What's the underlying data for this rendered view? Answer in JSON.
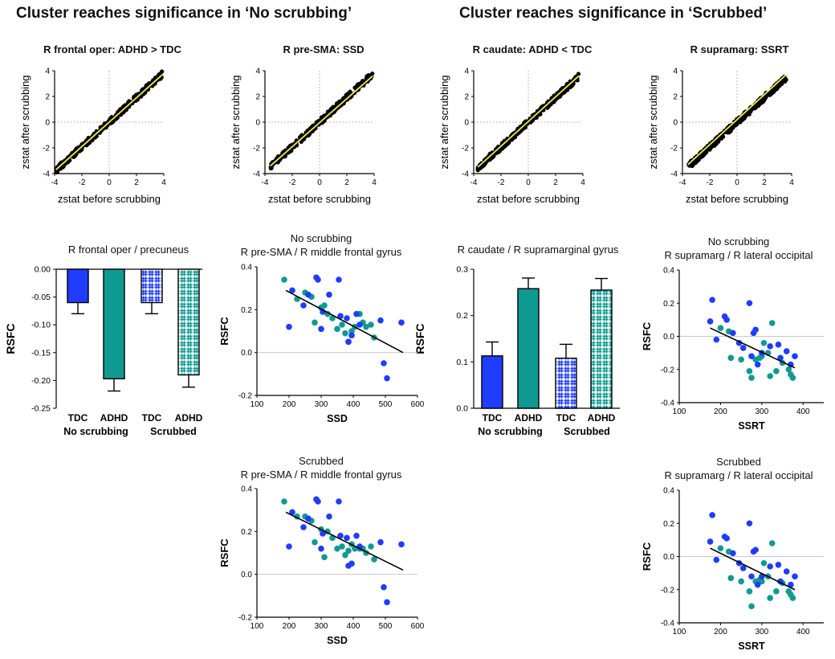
{
  "headers": {
    "left": "Cluster reaches significance in ‘No scrubbing’",
    "right": "Cluster reaches significance in ‘Scrubbed’"
  },
  "colors": {
    "tdc": "#1f3cff",
    "adhd": "#0f9a91",
    "fit": "#f5e84a",
    "point": "#000000"
  },
  "chart_data": [
    {
      "id": "s1",
      "type": "scatter",
      "title": "R frontal oper: ADHD > TDC",
      "xlabel": "zstat before scrubbing",
      "ylabel": "zstat after scrubbing",
      "xlim": [
        -4,
        4
      ],
      "ylim": [
        -4,
        4
      ],
      "xticks": [
        "-4",
        "-2",
        "0",
        "2",
        "4"
      ],
      "yticks": [
        "4",
        "2",
        "0",
        "-2",
        "-4"
      ],
      "fit": {
        "x": [
          -3.9,
          3.9
        ],
        "y": [
          -3.7,
          3.7
        ]
      },
      "data_extent": [
        -3.9,
        3.9
      ],
      "spread": 0.25
    },
    {
      "id": "s2",
      "type": "scatter",
      "title": "R pre-SMA: SSD",
      "xlabel": "zstat before scrubbing",
      "ylabel": "zstat after scrubbing",
      "xlim": [
        -4,
        4
      ],
      "ylim": [
        -4,
        4
      ],
      "xticks": [
        "-4",
        "-2",
        "0",
        "2",
        "4"
      ],
      "yticks": [
        "4",
        "2",
        "0",
        "-2",
        "-4"
      ],
      "fit": {
        "x": [
          -3.6,
          3.9
        ],
        "y": [
          -3.4,
          3.6
        ]
      },
      "data_extent": [
        -3.6,
        3.9
      ],
      "spread": 0.25
    },
    {
      "id": "s3",
      "type": "scatter",
      "title": "R caudate: ADHD < TDC",
      "xlabel": "zstat before scrubbing",
      "ylabel": "zstat after scrubbing",
      "xlim": [
        -4,
        4
      ],
      "ylim": [
        -4,
        4
      ],
      "xticks": [
        "-4",
        "-2",
        "0",
        "2",
        "4"
      ],
      "yticks": [
        "4",
        "2",
        "0",
        "-2",
        "-4"
      ],
      "fit": {
        "x": [
          -3.7,
          3.7
        ],
        "y": [
          -3.5,
          3.6
        ]
      },
      "data_extent": [
        -3.7,
        3.7
      ],
      "spread": 0.25
    },
    {
      "id": "s4",
      "type": "scatter",
      "title": "R supramarg: SSRT",
      "xlabel": "zstat before scrubbing",
      "ylabel": "zstat after scrubbing",
      "xlim": [
        -4,
        4
      ],
      "ylim": [
        -4,
        4
      ],
      "xticks": [
        "-4",
        "-2",
        "0",
        "2",
        "4"
      ],
      "yticks": [
        "4",
        "2",
        "0",
        "-2",
        "-4"
      ],
      "fit": {
        "x": [
          -3.6,
          3.6
        ],
        "y": [
          -3.3,
          3.7
        ]
      },
      "data_extent": [
        -3.6,
        3.6
      ],
      "spread": 0.25
    },
    {
      "id": "b1",
      "type": "bar",
      "title": "R frontal oper / precuneus",
      "ylabel": "RSFC",
      "ylim": [
        -0.25,
        0.0
      ],
      "yticks": [
        "0.00",
        "-0.05",
        "-0.10",
        "-0.15",
        "-0.20",
        "-0.25"
      ],
      "categories": [
        "TDC",
        "ADHD",
        "TDC",
        "ADHD"
      ],
      "groups": [
        "No scrubbing",
        "Scrubbed"
      ],
      "values": [
        -0.06,
        -0.197,
        -0.06,
        -0.19
      ],
      "errors": [
        0.02,
        0.022,
        0.02,
        0.022
      ]
    },
    {
      "id": "b2",
      "type": "bar",
      "title": "R caudate / R supramarginal gyrus",
      "ylabel": "RSFC",
      "ylim": [
        0.0,
        0.3
      ],
      "yticks": [
        "0.3",
        "0.2",
        "0.1",
        "0.0"
      ],
      "categories": [
        "TDC",
        "ADHD",
        "TDC",
        "ADHD"
      ],
      "groups": [
        "No scrubbing",
        "Scrubbed"
      ],
      "values": [
        0.113,
        0.258,
        0.108,
        0.255
      ],
      "errors": [
        0.03,
        0.023,
        0.03,
        0.025
      ]
    },
    {
      "id": "c1",
      "type": "scatter",
      "title": "No scrubbing",
      "subtitle": "R pre-SMA / R middle frontal gyrus",
      "xlabel": "SSD",
      "ylabel": "RSFC",
      "xlim": [
        100,
        600
      ],
      "ylim": [
        -0.2,
        0.4
      ],
      "xticks": [
        "100",
        "200",
        "300",
        "400",
        "500",
        "600"
      ],
      "yticks": [
        "0.4",
        "0.2",
        "0.0",
        "-0.2"
      ],
      "fit": {
        "x": [
          190,
          555
        ],
        "y": [
          0.29,
          0.0
        ]
      },
      "tdc": [
        [
          200,
          0.12
        ],
        [
          210,
          0.29
        ],
        [
          245,
          0.22
        ],
        [
          260,
          0.27
        ],
        [
          285,
          0.35
        ],
        [
          290,
          0.34
        ],
        [
          300,
          0.11
        ],
        [
          305,
          0.19
        ],
        [
          325,
          0.27
        ],
        [
          355,
          0.34
        ],
        [
          360,
          0.17
        ],
        [
          380,
          0.16
        ],
        [
          385,
          0.05
        ],
        [
          395,
          0.08
        ],
        [
          410,
          0.18
        ],
        [
          420,
          0.13
        ],
        [
          485,
          0.15
        ],
        [
          495,
          -0.05
        ],
        [
          505,
          -0.12
        ],
        [
          550,
          0.14
        ]
      ],
      "adhd": [
        [
          185,
          0.34
        ],
        [
          225,
          0.25
        ],
        [
          250,
          0.28
        ],
        [
          270,
          0.26
        ],
        [
          280,
          0.14
        ],
        [
          300,
          0.21
        ],
        [
          310,
          0.22
        ],
        [
          320,
          0.18
        ],
        [
          335,
          0.16
        ],
        [
          350,
          0.11
        ],
        [
          365,
          0.13
        ],
        [
          375,
          0.09
        ],
        [
          385,
          0.05
        ],
        [
          395,
          0.1
        ],
        [
          405,
          0.12
        ],
        [
          420,
          0.18
        ],
        [
          430,
          0.14
        ],
        [
          440,
          0.12
        ],
        [
          455,
          0.13
        ],
        [
          465,
          0.07
        ]
      ]
    },
    {
      "id": "c2",
      "type": "scatter",
      "title": "Scrubbed",
      "subtitle": "R pre-SMA / R middle frontal gyrus",
      "xlabel": "SSD",
      "ylabel": "RSFC",
      "xlim": [
        100,
        600
      ],
      "ylim": [
        -0.2,
        0.4
      ],
      "xticks": [
        "100",
        "200",
        "300",
        "400",
        "500",
        "600"
      ],
      "yticks": [
        "0.4",
        "0.2",
        "0.0",
        "-0.2"
      ],
      "fit": {
        "x": [
          190,
          555
        ],
        "y": [
          0.29,
          0.02
        ]
      },
      "tdc": [
        [
          200,
          0.13
        ],
        [
          210,
          0.29
        ],
        [
          245,
          0.22
        ],
        [
          260,
          0.26
        ],
        [
          285,
          0.35
        ],
        [
          290,
          0.34
        ],
        [
          300,
          0.12
        ],
        [
          305,
          0.19
        ],
        [
          325,
          0.27
        ],
        [
          355,
          0.34
        ],
        [
          360,
          0.18
        ],
        [
          380,
          0.17
        ],
        [
          385,
          0.04
        ],
        [
          395,
          0.05
        ],
        [
          410,
          0.18
        ],
        [
          420,
          0.13
        ],
        [
          485,
          0.15
        ],
        [
          495,
          -0.06
        ],
        [
          505,
          -0.13
        ],
        [
          550,
          0.14
        ]
      ],
      "adhd": [
        [
          185,
          0.34
        ],
        [
          225,
          0.27
        ],
        [
          250,
          0.27
        ],
        [
          270,
          0.25
        ],
        [
          280,
          0.15
        ],
        [
          300,
          0.21
        ],
        [
          310,
          0.08
        ],
        [
          320,
          0.2
        ],
        [
          335,
          0.17
        ],
        [
          350,
          0.12
        ],
        [
          365,
          0.13
        ],
        [
          375,
          0.09
        ],
        [
          385,
          0.11
        ],
        [
          395,
          0.14
        ],
        [
          405,
          0.12
        ],
        [
          420,
          0.12
        ],
        [
          430,
          0.12
        ],
        [
          440,
          0.1
        ],
        [
          455,
          0.13
        ],
        [
          465,
          0.07
        ]
      ]
    },
    {
      "id": "c3",
      "type": "scatter",
      "title": "No scrubbing",
      "subtitle": "R supramarg / R lateral occipital",
      "xlabel": "SSRT",
      "ylabel": "RSFC",
      "xlim": [
        100,
        450
      ],
      "ylim": [
        -0.4,
        0.4
      ],
      "xticks": [
        "100",
        "200",
        "300",
        "400"
      ],
      "yticks": [
        "0.4",
        "0.2",
        "0.0",
        "-0.2",
        "-0.4"
      ],
      "fit": {
        "x": [
          175,
          380
        ],
        "y": [
          0.05,
          -0.19
        ]
      },
      "tdc": [
        [
          175,
          0.09
        ],
        [
          180,
          0.22
        ],
        [
          190,
          -0.02
        ],
        [
          210,
          0.12
        ],
        [
          215,
          0.1
        ],
        [
          230,
          0.02
        ],
        [
          245,
          -0.04
        ],
        [
          255,
          -0.07
        ],
        [
          270,
          0.2
        ],
        [
          275,
          -0.12
        ],
        [
          280,
          0.02
        ],
        [
          285,
          0.04
        ],
        [
          290,
          -0.17
        ],
        [
          300,
          -0.1
        ],
        [
          320,
          -0.06
        ],
        [
          340,
          -0.05
        ],
        [
          345,
          -0.13
        ],
        [
          360,
          -0.09
        ],
        [
          370,
          -0.17
        ],
        [
          380,
          -0.12
        ]
      ],
      "adhd": [
        [
          200,
          0.05
        ],
        [
          220,
          0.03
        ],
        [
          225,
          -0.13
        ],
        [
          250,
          -0.14
        ],
        [
          270,
          -0.21
        ],
        [
          275,
          -0.25
        ],
        [
          285,
          -0.14
        ],
        [
          295,
          -0.13
        ],
        [
          300,
          -0.12
        ],
        [
          305,
          -0.04
        ],
        [
          315,
          -0.1
        ],
        [
          320,
          -0.24
        ],
        [
          325,
          0.08
        ],
        [
          335,
          -0.21
        ],
        [
          350,
          -0.16
        ],
        [
          365,
          -0.2
        ],
        [
          370,
          -0.23
        ],
        [
          375,
          -0.25
        ]
      ]
    },
    {
      "id": "c4",
      "type": "scatter",
      "title": "Scrubbed",
      "subtitle": "R supramarg / R lateral occipital",
      "xlabel": "SSRT",
      "ylabel": "RSFC",
      "xlim": [
        100,
        450
      ],
      "ylim": [
        -0.4,
        0.4
      ],
      "xticks": [
        "100",
        "200",
        "300",
        "400"
      ],
      "yticks": [
        "0.4",
        "0.2",
        "0.0",
        "-0.2",
        "-0.4"
      ],
      "fit": {
        "x": [
          175,
          380
        ],
        "y": [
          0.05,
          -0.2
        ]
      },
      "tdc": [
        [
          175,
          0.09
        ],
        [
          180,
          0.25
        ],
        [
          190,
          -0.02
        ],
        [
          210,
          0.12
        ],
        [
          215,
          0.11
        ],
        [
          230,
          0.02
        ],
        [
          245,
          -0.04
        ],
        [
          255,
          -0.07
        ],
        [
          270,
          0.2
        ],
        [
          275,
          -0.12
        ],
        [
          280,
          0.03
        ],
        [
          285,
          0.04
        ],
        [
          290,
          -0.17
        ],
        [
          300,
          -0.12
        ],
        [
          320,
          -0.06
        ],
        [
          340,
          -0.05
        ],
        [
          345,
          -0.15
        ],
        [
          360,
          -0.09
        ],
        [
          370,
          -0.17
        ],
        [
          380,
          -0.12
        ]
      ],
      "adhd": [
        [
          200,
          0.05
        ],
        [
          220,
          0.03
        ],
        [
          225,
          -0.13
        ],
        [
          250,
          -0.15
        ],
        [
          270,
          -0.21
        ],
        [
          275,
          -0.3
        ],
        [
          285,
          -0.15
        ],
        [
          295,
          -0.14
        ],
        [
          300,
          -0.15
        ],
        [
          305,
          -0.04
        ],
        [
          315,
          -0.12
        ],
        [
          320,
          -0.25
        ],
        [
          325,
          0.08
        ],
        [
          335,
          -0.21
        ],
        [
          350,
          -0.16
        ],
        [
          365,
          -0.21
        ],
        [
          370,
          -0.23
        ],
        [
          375,
          -0.25
        ]
      ]
    }
  ]
}
